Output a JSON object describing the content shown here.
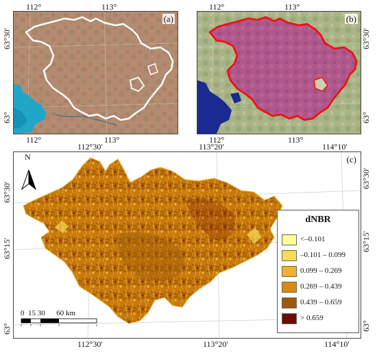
{
  "panel_a": {
    "tag": "(a)",
    "top_ticks": [
      "112°",
      "113°"
    ],
    "bottom_ticks": [
      "112°",
      "113°"
    ],
    "left_ticks": [
      "63°30'",
      "63°"
    ]
  },
  "panel_b": {
    "tag": "(b)",
    "top_ticks": [
      "112°",
      "113°"
    ],
    "bottom_ticks": [
      "112°",
      "113°"
    ],
    "right_ticks": [
      "63°30'",
      "63°"
    ]
  },
  "panel_c": {
    "tag": "(c)",
    "top_ticks": [
      "112°30'",
      "113°20'",
      "114°10'"
    ],
    "bottom_ticks": [
      "112°30'",
      "113°20'",
      "114°10'"
    ],
    "left_ticks": [
      "63°30'",
      "63°15'",
      "63°"
    ],
    "right_ticks": [
      "63°30'",
      "63°15'",
      "63°"
    ],
    "north_label": "N",
    "scale_label": "0  15 30      60 km"
  },
  "legend": {
    "title": "dNBR",
    "items": [
      {
        "label": "<–0.101",
        "color": "#ffff99"
      },
      {
        "label": "–0.101 – 0.099",
        "color": "#f7dc55"
      },
      {
        "label": "0.099 – 0.269",
        "color": "#f0b030"
      },
      {
        "label": "0.269 – 0.439",
        "color": "#d98a10"
      },
      {
        "label": "0.439 – 0.659",
        "color": "#9c5a08"
      },
      {
        "label": "> 0.659",
        "color": "#6b0d05"
      }
    ]
  }
}
